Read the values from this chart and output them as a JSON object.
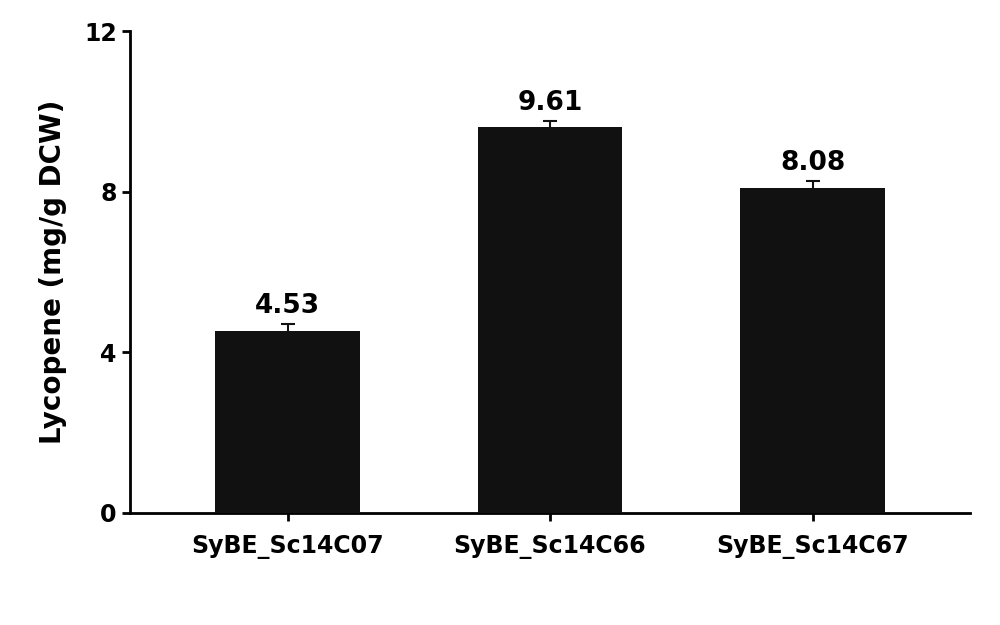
{
  "categories": [
    "SyBE_Sc14C07",
    "SyBE_Sc14C66",
    "SyBE_Sc14C67"
  ],
  "values": [
    4.53,
    9.61,
    8.08
  ],
  "errors": [
    0.18,
    0.15,
    0.18
  ],
  "bar_color": "#111111",
  "ylabel": "Lycopene (mg/g DCW)",
  "ylim": [
    0,
    12
  ],
  "yticks": [
    0,
    4,
    8,
    12
  ],
  "value_labels": [
    "4.53",
    "9.61",
    "8.08"
  ],
  "bar_width": 0.55,
  "label_fontsize": 20,
  "tick_fontsize": 17,
  "value_label_fontsize": 19,
  "background_color": "#ffffff",
  "error_color": "#111111",
  "error_capsize": 5,
  "error_linewidth": 1.5,
  "xlim": [
    -0.6,
    2.6
  ]
}
